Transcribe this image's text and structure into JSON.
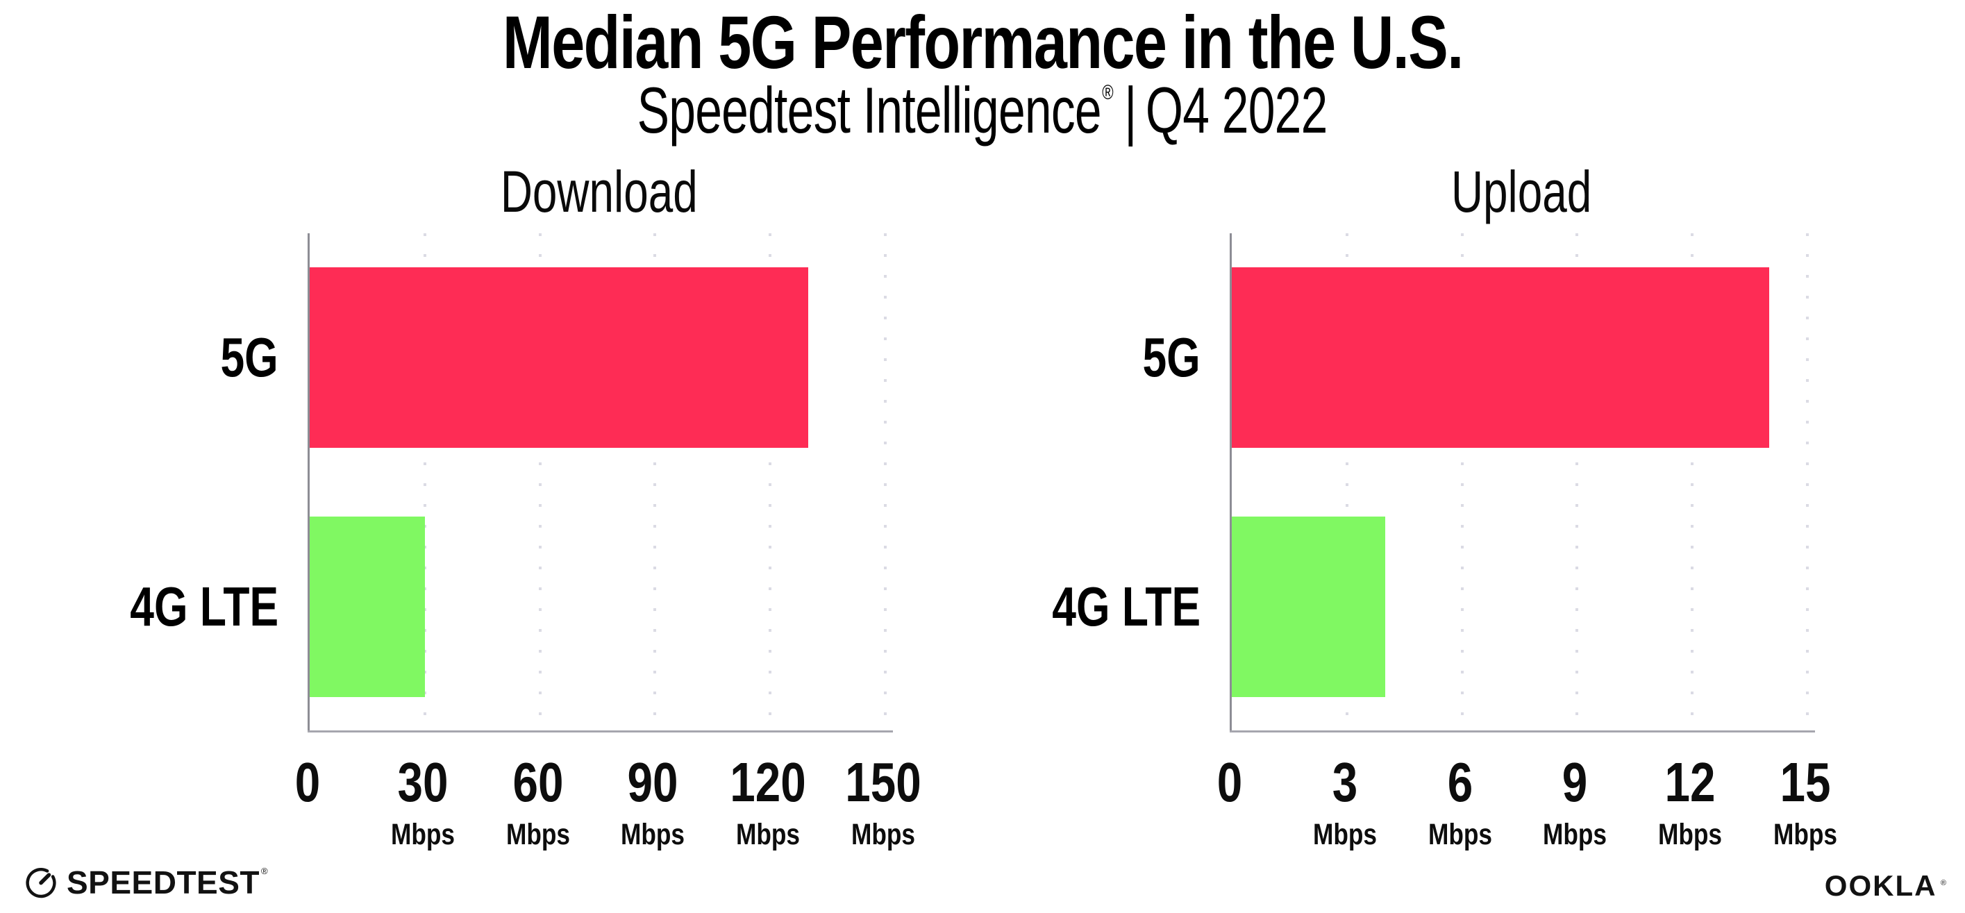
{
  "header": {
    "title": "Median 5G Performance in the U.S.",
    "subtitle_brand": "Speedtest Intelligence",
    "subtitle_reg": "®",
    "subtitle_sep": "|",
    "subtitle_period": "Q4 2022"
  },
  "chart_data": [
    {
      "type": "bar",
      "orientation": "horizontal",
      "title": "Download",
      "categories": [
        "5G",
        "4G LTE"
      ],
      "values": [
        130,
        30
      ],
      "unit": "Mbps",
      "xlim": [
        0,
        152
      ],
      "xticks": [
        0,
        30,
        60,
        90,
        120,
        150
      ],
      "xtick_unit_label": "Mbps",
      "bar_colors": [
        "#fe2c55",
        "#80f862"
      ],
      "grid": "vertical-dotted",
      "legend": "none"
    },
    {
      "type": "bar",
      "orientation": "horizontal",
      "title": "Upload",
      "categories": [
        "5G",
        "4G LTE"
      ],
      "values": [
        14,
        4
      ],
      "unit": "Mbps",
      "xlim": [
        0,
        15.2
      ],
      "xticks": [
        0,
        3,
        6,
        9,
        12,
        15
      ],
      "xtick_unit_label": "Mbps",
      "bar_colors": [
        "#fe2c55",
        "#80f862"
      ],
      "grid": "vertical-dotted",
      "legend": "none"
    }
  ],
  "footer": {
    "speedtest_logo": "SPEEDTEST",
    "speedtest_reg": "®",
    "ookla_logo": "OOKLA",
    "ookla_reg": "®"
  },
  "colors": {
    "bar_5g": "#fe2c55",
    "bar_4g_lte": "#80f862",
    "axis_line": "#a6a6ae",
    "y_axis_line": "#8d8d95",
    "gridline": "#dbdbe4",
    "text": "#000000",
    "background": "#ffffff"
  }
}
